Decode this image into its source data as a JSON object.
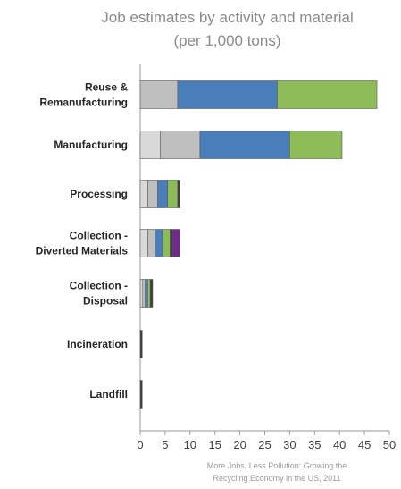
{
  "chart_data": {
    "type": "bar",
    "orientation": "horizontal",
    "stacked": true,
    "title": "Job estimates by activity and material",
    "subtitle": "(per 1,000 tons)",
    "source": [
      "More Jobs, Less Pollution: Growing the",
      "Recycling Economy in the US, 2011"
    ],
    "categories": [
      "Reuse & Remanufacturing",
      "Manufacturing",
      "Processing",
      "Collection - Diverted Materials",
      "Collection - Disposal",
      "Incineration",
      "Landfill"
    ],
    "category_lines": [
      [
        "Reuse &",
        "Remanufacturing"
      ],
      [
        "Manufacturing"
      ],
      [
        "Processing"
      ],
      [
        "Collection -",
        "Diverted Materials"
      ],
      [
        "Collection -",
        "Disposal"
      ],
      [
        "Incineration"
      ],
      [
        "Landfill"
      ]
    ],
    "series": [
      {
        "color": "#d9d9d9",
        "values": [
          0,
          4,
          1.5,
          1.5,
          0.5,
          0,
          0
        ]
      },
      {
        "color": "#bfbfbf",
        "values": [
          7.5,
          8,
          2,
          1.5,
          0.5,
          0,
          0
        ]
      },
      {
        "color": "#4a7ebb",
        "values": [
          20,
          18,
          2,
          1.5,
          0.5,
          0,
          0
        ]
      },
      {
        "color": "#8dbb58",
        "values": [
          20,
          10.5,
          2,
          1.5,
          0.5,
          0,
          0
        ]
      },
      {
        "color": "#3c3c3c",
        "values": [
          0,
          0,
          0.5,
          0.5,
          0.5,
          0.4,
          0.4
        ]
      },
      {
        "color": "#6f2b8c",
        "values": [
          0,
          0,
          0,
          1.5,
          0,
          0,
          0
        ]
      }
    ],
    "xlim": [
      0,
      50
    ],
    "xticks": [
      0,
      5,
      10,
      15,
      20,
      25,
      30,
      35,
      40,
      45,
      50
    ],
    "grid": false,
    "legend": "none"
  }
}
